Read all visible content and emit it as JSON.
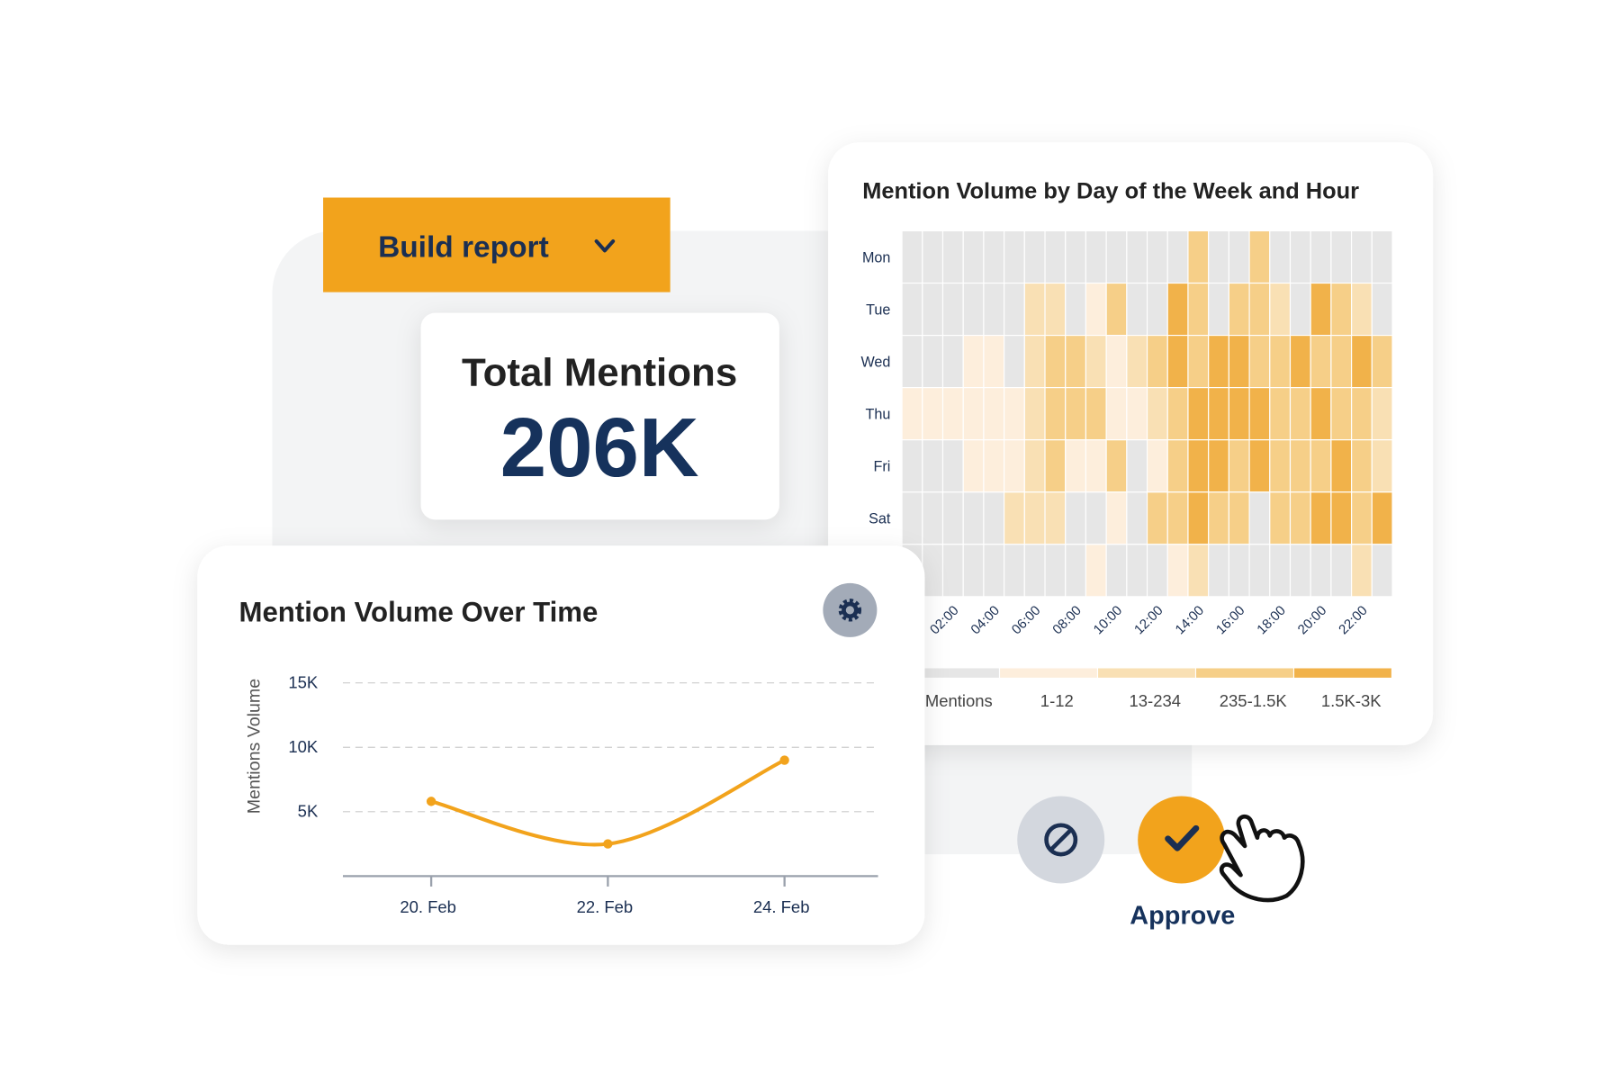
{
  "build_report": {
    "label": "Build report"
  },
  "total_mentions": {
    "title": "Total Mentions",
    "value": "206K"
  },
  "chart_data": [
    {
      "type": "heatmap",
      "title": "Mention Volume by Day of the Week and Hour",
      "rows": [
        "Mon",
        "Tue",
        "Wed",
        "Thu",
        "Fri",
        "Sat",
        null
      ],
      "columns": [
        null,
        null,
        "02:00",
        null,
        "04:00",
        null,
        "06:00",
        null,
        "08:00",
        null,
        "10:00",
        null,
        "12:00",
        null,
        "14:00",
        null,
        "16:00",
        null,
        "18:00",
        null,
        "20:00",
        null,
        "22:00",
        null
      ],
      "values": [
        [
          0,
          0,
          0,
          0,
          0,
          0,
          0,
          0,
          0,
          0,
          0,
          0,
          0,
          0,
          3,
          0,
          0,
          3,
          0,
          0,
          0,
          0,
          0,
          0
        ],
        [
          0,
          0,
          0,
          0,
          0,
          0,
          2,
          2,
          0,
          1,
          3,
          0,
          0,
          4,
          3,
          0,
          3,
          3,
          2,
          0,
          4,
          3,
          2,
          0
        ],
        [
          0,
          0,
          0,
          1,
          1,
          0,
          2,
          3,
          3,
          2,
          1,
          2,
          3,
          4,
          3,
          4,
          4,
          3,
          3,
          4,
          3,
          3,
          4,
          3
        ],
        [
          1,
          1,
          1,
          1,
          1,
          1,
          2,
          3,
          3,
          3,
          1,
          1,
          2,
          3,
          4,
          4,
          4,
          4,
          3,
          3,
          4,
          3,
          3,
          2
        ],
        [
          0,
          0,
          0,
          1,
          1,
          1,
          2,
          3,
          1,
          1,
          3,
          0,
          1,
          3,
          4,
          4,
          3,
          4,
          3,
          3,
          3,
          4,
          3,
          2
        ],
        [
          0,
          0,
          0,
          0,
          0,
          2,
          2,
          2,
          0,
          0,
          1,
          0,
          3,
          3,
          4,
          3,
          3,
          0,
          3,
          3,
          4,
          4,
          3,
          4
        ],
        [
          0,
          0,
          0,
          0,
          0,
          0,
          0,
          0,
          0,
          1,
          0,
          0,
          0,
          1,
          2,
          0,
          0,
          0,
          0,
          0,
          0,
          0,
          2,
          0
        ]
      ],
      "legend": {
        "labels": [
          "Mentions",
          "1-12",
          "13-234",
          "235-1.5K",
          "1.5K-3K"
        ],
        "colors": [
          "#e6e6e6",
          "#fdeedc",
          "#f9e0b4",
          "#f6cf88",
          "#f1b24a"
        ]
      }
    },
    {
      "type": "line",
      "title": "Mention Volume Over Time",
      "y_label": "Mentions Volume",
      "categories": [
        "20. Feb",
        "22. Feb",
        "24. Feb"
      ],
      "values": [
        5800,
        2500,
        9000
      ],
      "color": "#f2a31c",
      "ylim": [
        0,
        15000
      ],
      "yticks": [
        {
          "value": 5000,
          "label": "5K"
        },
        {
          "value": 10000,
          "label": "10K"
        },
        {
          "value": 15000,
          "label": "15K"
        }
      ],
      "grid": true
    }
  ],
  "actions": {
    "approve": "Approve"
  }
}
